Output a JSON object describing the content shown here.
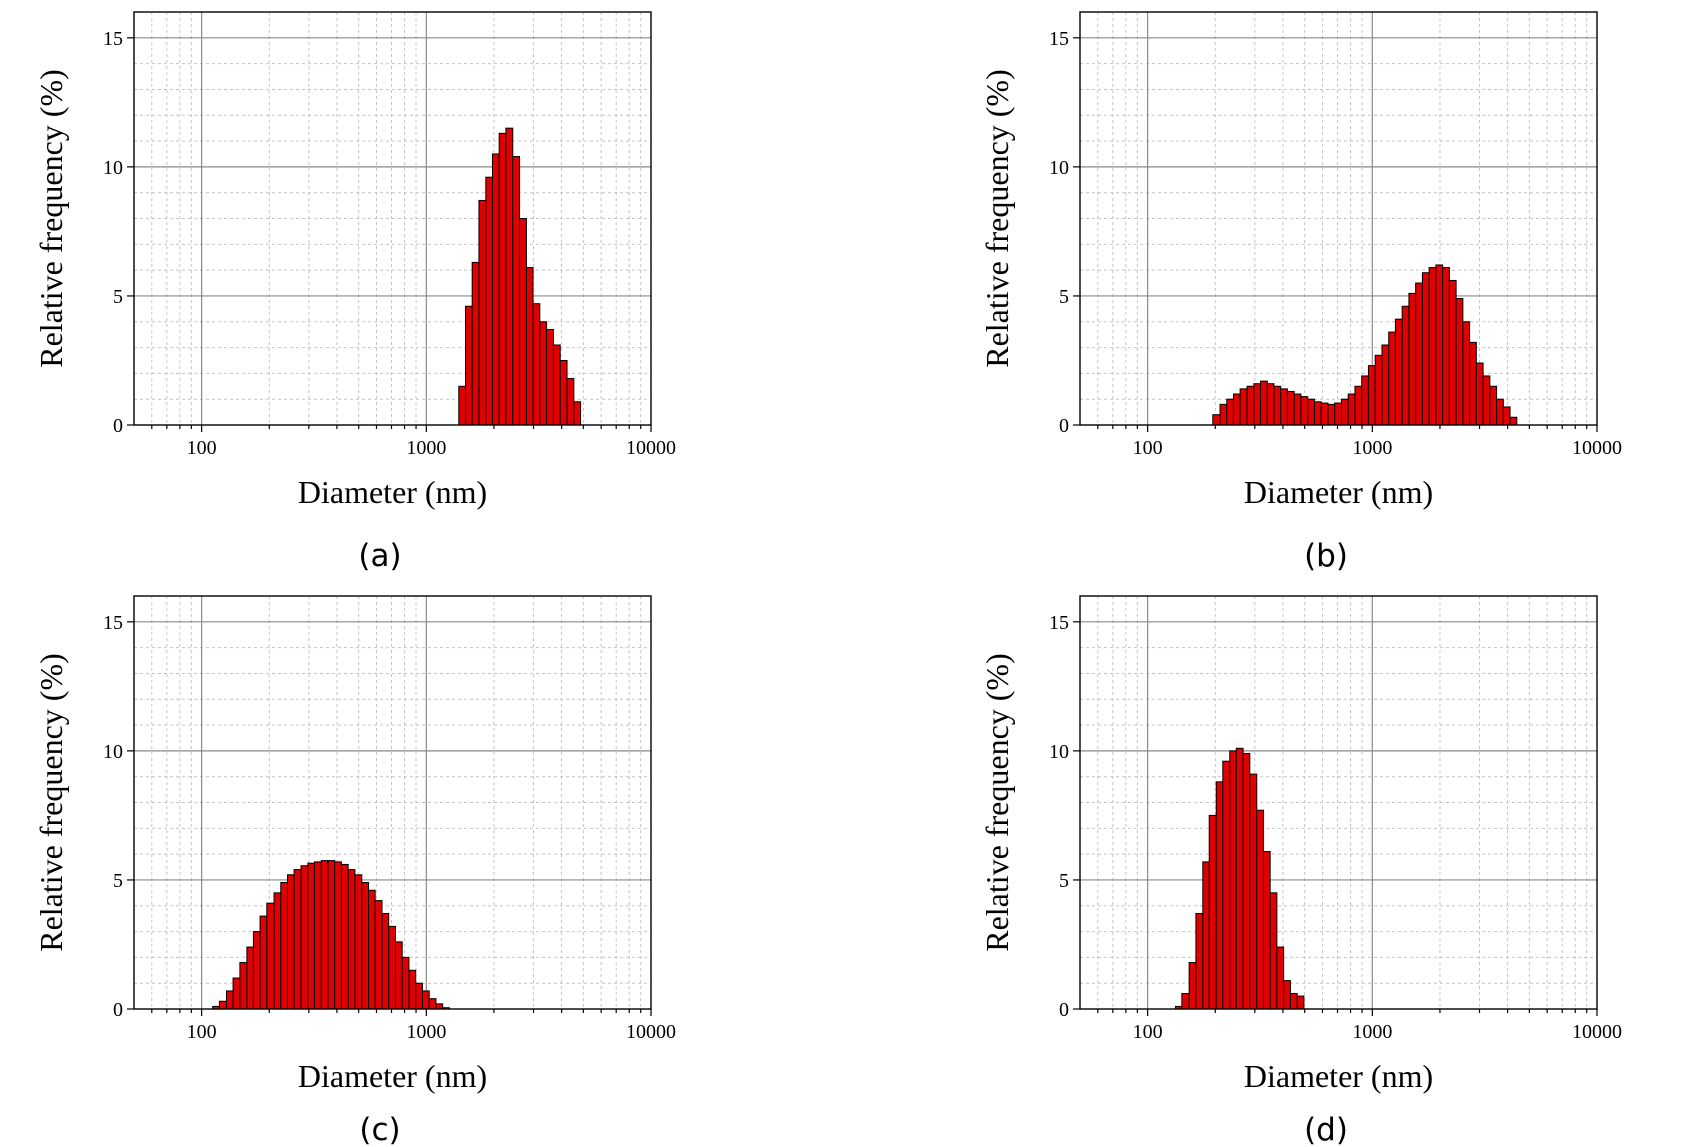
{
  "chart_data": [
    {
      "type": "bar",
      "panel_label": "(a)",
      "xlabel": "Diameter (nm)",
      "ylabel": "Relative frequency (%)",
      "x_scale": "log",
      "xlim": [
        50,
        10000
      ],
      "ylim": [
        0,
        16
      ],
      "x_ticks": [
        "100",
        "1000",
        "10000"
      ],
      "y_ticks": [
        "0",
        "5",
        "10",
        "15"
      ],
      "grid": true,
      "bar_color": "#e00000",
      "bin_edges_nm": [
        1395,
        1495,
        1600,
        1715,
        1840,
        1970,
        2110,
        2260,
        2425,
        2600,
        2790,
        2985,
        3200,
        3430,
        3680,
        3945,
        4230,
        4535,
        4860
      ],
      "values": [
        1.5,
        4.6,
        6.3,
        8.7,
        9.6,
        10.5,
        11.3,
        11.5,
        10.4,
        8.0,
        6.1,
        4.7,
        4.0,
        3.7,
        3.1,
        2.5,
        1.8,
        0.9
      ]
    },
    {
      "type": "bar",
      "panel_label": "(b)",
      "xlabel": "Diameter (nm)",
      "ylabel": "Relative frequency (%)",
      "x_scale": "log",
      "xlim": [
        50,
        10000
      ],
      "ylim": [
        0,
        16
      ],
      "x_ticks": [
        "100",
        "1000",
        "10000"
      ],
      "y_ticks": [
        "0",
        "5",
        "10",
        "15"
      ],
      "grid": true,
      "bar_color": "#e00000",
      "bin_edges_nm": [
        195,
        210,
        225,
        241,
        258,
        277,
        297,
        318,
        341,
        365,
        391,
        419,
        449,
        481,
        516,
        553,
        592,
        635,
        680,
        729,
        781,
        837,
        897,
        961,
        1030,
        1104,
        1183,
        1267,
        1358,
        1455,
        1559,
        1671,
        1790,
        1918,
        2056,
        2203,
        2360,
        2529,
        2710,
        2904,
        3112,
        3335,
        3574,
        3829,
        4103,
        4397
      ],
      "values": [
        0.4,
        0.8,
        1.0,
        1.2,
        1.4,
        1.5,
        1.6,
        1.7,
        1.6,
        1.5,
        1.4,
        1.3,
        1.2,
        1.1,
        1.0,
        0.9,
        0.85,
        0.8,
        0.85,
        1.0,
        1.2,
        1.5,
        1.9,
        2.3,
        2.7,
        3.1,
        3.6,
        4.1,
        4.6,
        5.1,
        5.5,
        5.9,
        6.1,
        6.2,
        6.1,
        5.6,
        4.9,
        4.0,
        3.2,
        2.4,
        1.9,
        1.5,
        1.0,
        0.7,
        0.3
      ]
    },
    {
      "type": "bar",
      "panel_label": "(c)",
      "xlabel": "Diameter (nm)",
      "ylabel": "Relative frequency (%)",
      "x_scale": "log",
      "xlim": [
        50,
        10000
      ],
      "ylim": [
        0,
        16
      ],
      "x_ticks": [
        "100",
        "1000",
        "10000"
      ],
      "y_ticks": [
        "0",
        "5",
        "10",
        "15"
      ],
      "grid": true,
      "bar_color": "#e00000",
      "bin_edges_nm": [
        112,
        120,
        129,
        138,
        148,
        159,
        170,
        182,
        195,
        210,
        225,
        241,
        258,
        277,
        297,
        318,
        341,
        365,
        391,
        419,
        449,
        481,
        516,
        553,
        592,
        635,
        680,
        729,
        781,
        837,
        897,
        961,
        1030,
        1104,
        1183,
        1267
      ],
      "values": [
        0.1,
        0.3,
        0.7,
        1.2,
        1.8,
        2.4,
        3.0,
        3.6,
        4.1,
        4.5,
        4.9,
        5.2,
        5.4,
        5.55,
        5.65,
        5.7,
        5.75,
        5.75,
        5.7,
        5.6,
        5.4,
        5.2,
        4.9,
        4.6,
        4.2,
        3.7,
        3.2,
        2.6,
        2.0,
        1.5,
        1.0,
        0.7,
        0.4,
        0.2,
        0.05
      ]
    },
    {
      "type": "bar",
      "panel_label": "(d)",
      "xlabel": "Diameter (nm)",
      "ylabel": "Relative frequency (%)",
      "x_scale": "log",
      "xlim": [
        50,
        10000
      ],
      "ylim": [
        0,
        16
      ],
      "x_ticks": [
        "100",
        "1000",
        "10000"
      ],
      "y_ticks": [
        "0",
        "5",
        "10",
        "15"
      ],
      "grid": true,
      "bar_color": "#e00000",
      "bin_edges_nm": [
        133,
        142,
        153,
        164,
        176,
        188,
        202,
        216,
        232,
        248,
        266,
        285,
        306,
        328,
        351,
        376,
        403,
        432,
        463,
        496
      ],
      "values": [
        0.1,
        0.6,
        1.8,
        3.7,
        5.7,
        7.5,
        8.8,
        9.6,
        10.0,
        10.1,
        9.9,
        9.1,
        7.7,
        6.1,
        4.5,
        2.4,
        1.1,
        0.6,
        0.5
      ]
    }
  ]
}
